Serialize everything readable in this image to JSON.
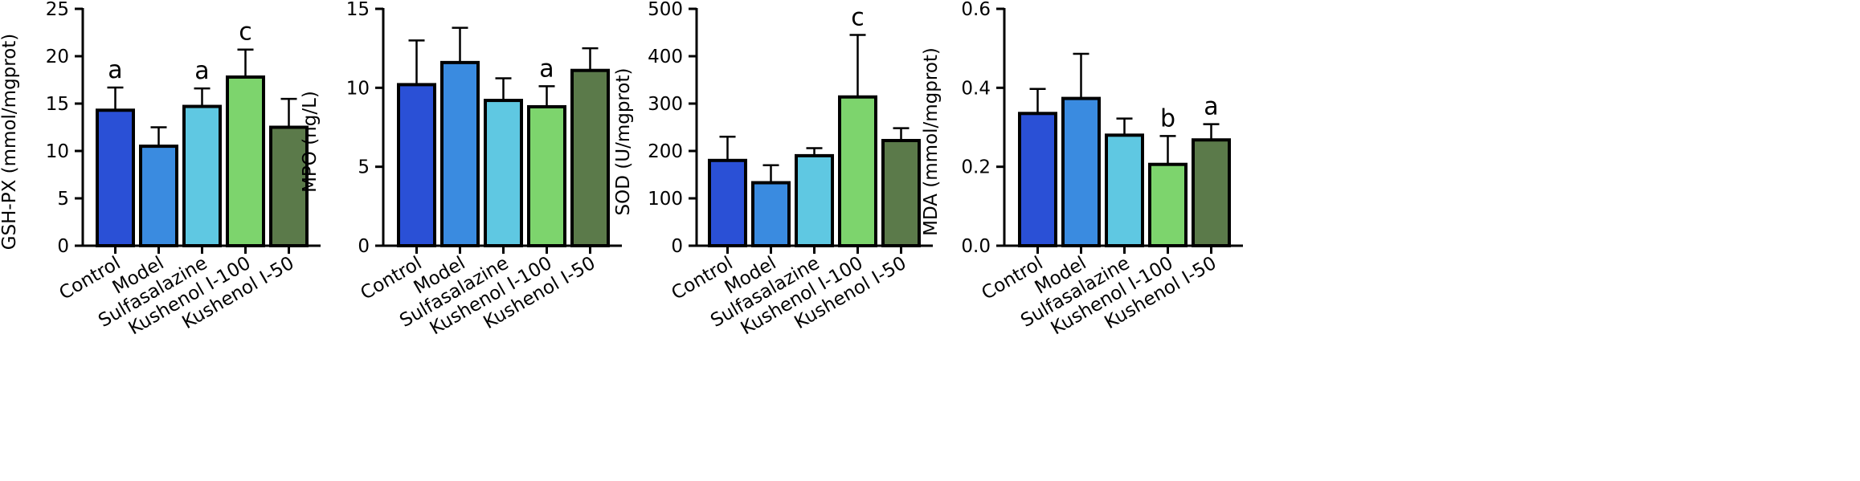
{
  "chart_data": [
    {
      "type": "bar",
      "ylabel": "GSH-PX (mmol/mgprot)",
      "ylim": [
        0,
        25
      ],
      "yticks": [
        "0",
        "5",
        "10",
        "15",
        "20",
        "25"
      ],
      "categories": [
        "Control",
        "Model",
        "Sulfasalazine",
        "Kushenol I-100",
        "Kushenol I-50"
      ],
      "values": [
        14.3,
        10.5,
        14.7,
        17.8,
        12.5
      ],
      "errors": [
        2.4,
        2.0,
        1.9,
        2.9,
        3.0
      ],
      "annotations": [
        "a",
        "",
        "a",
        "c",
        ""
      ],
      "colors": [
        "#2A50D6",
        "#3A8BE0",
        "#5FC8E2",
        "#7DD46D",
        "#5B7A4A"
      ]
    },
    {
      "type": "bar",
      "ylabel": "MPO (ng/L)",
      "ylim": [
        0,
        15
      ],
      "yticks": [
        "0",
        "5",
        "10",
        "15"
      ],
      "categories": [
        "Control",
        "Model",
        "Sulfasalazine",
        "Kushenol I-100",
        "Kushenol I-50"
      ],
      "values": [
        10.2,
        11.6,
        9.2,
        8.8,
        11.1
      ],
      "errors": [
        2.8,
        2.2,
        1.4,
        1.3,
        1.4
      ],
      "annotations": [
        "",
        "",
        "",
        "a",
        ""
      ],
      "colors": [
        "#2A50D6",
        "#3A8BE0",
        "#5FC8E2",
        "#7DD46D",
        "#5B7A4A"
      ]
    },
    {
      "type": "bar",
      "ylabel": "SOD (U/mgprot)",
      "ylim": [
        0,
        500
      ],
      "yticks": [
        "0",
        "100",
        "200",
        "300",
        "400",
        "500"
      ],
      "categories": [
        "Control",
        "Model",
        "Sulfasalazine",
        "Kushenol I-100",
        "Kushenol I-50"
      ],
      "values": [
        180,
        133,
        190,
        314,
        222
      ],
      "errors": [
        50,
        37,
        16,
        131,
        26
      ],
      "annotations": [
        "",
        "",
        "",
        "c",
        ""
      ],
      "colors": [
        "#2A50D6",
        "#3A8BE0",
        "#5FC8E2",
        "#7DD46D",
        "#5B7A4A"
      ]
    },
    {
      "type": "bar",
      "ylabel": "MDA (mmol/mgprot)",
      "ylim": [
        0,
        0.6
      ],
      "yticks": [
        "0.0",
        "0.2",
        "0.4",
        "0.6"
      ],
      "categories": [
        "Control",
        "Model",
        "Sulfasalazine",
        "Kushenol I-100",
        "Kushenol I-50"
      ],
      "values": [
        0.335,
        0.373,
        0.28,
        0.206,
        0.268
      ],
      "errors": [
        0.062,
        0.113,
        0.042,
        0.072,
        0.04
      ],
      "annotations": [
        "",
        "",
        "",
        "b",
        "a"
      ],
      "colors": [
        "#2A50D6",
        "#3A8BE0",
        "#5FC8E2",
        "#7DD46D",
        "#5B7A4A"
      ]
    }
  ]
}
